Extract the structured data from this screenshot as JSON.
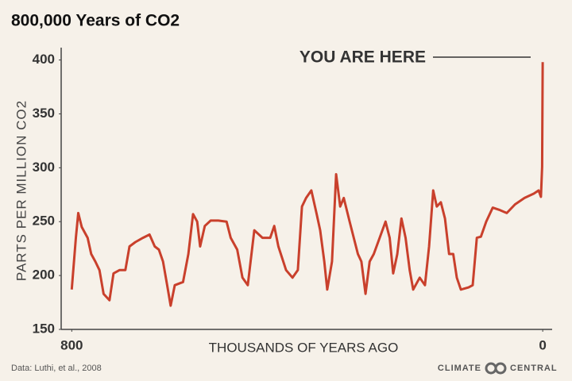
{
  "chart_data": {
    "type": "line",
    "title": "800,000 Years of CO2",
    "xlabel": "THOUSANDS OF YEARS AGO",
    "ylabel": "PARTS PER MILLION  CO2",
    "annotation": "YOU ARE HERE",
    "source": "Data: Luthi, et al., 2008",
    "logo": {
      "left": "CLIMATE",
      "right": "CENTRAL"
    },
    "color": "#c9402c",
    "xlim": [
      818,
      -16
    ],
    "xticks": [
      800,
      0
    ],
    "ylim": [
      150,
      410
    ],
    "yticks": [
      150,
      200,
      250,
      300,
      350,
      400
    ],
    "x": [
      800,
      793,
      789,
      783,
      773,
      767,
      760,
      753,
      746,
      736,
      729,
      719,
      709,
      702,
      692,
      679,
      668,
      659,
      652,
      645,
      638,
      632,
      625,
      611,
      602,
      594,
      587,
      582,
      574,
      564,
      551,
      537,
      530,
      519,
      510,
      501,
      490,
      476,
      463,
      456,
      449,
      436,
      425,
      416,
      409,
      402,
      393,
      384,
      378,
      371,
      366,
      358,
      351,
      344,
      338,
      328,
      321,
      314,
      308,
      301,
      294,
      287,
      277,
      267,
      260,
      254,
      247,
      240,
      233,
      226,
      220,
      209,
      200,
      193,
      186,
      180,
      173,
      166,
      159,
      152,
      146,
      139,
      126,
      119,
      112,
      105,
      96,
      85,
      74,
      61,
      47,
      31,
      15,
      7,
      3,
      1,
      0
    ],
    "values": [
      187,
      235,
      258,
      245,
      235,
      220,
      213,
      205,
      183,
      177,
      202,
      205,
      205,
      227,
      231,
      235,
      238,
      227,
      224,
      213,
      191,
      172,
      191,
      194,
      220,
      257,
      250,
      227,
      246,
      251,
      251,
      250,
      235,
      224,
      198,
      191,
      242,
      235,
      235,
      246,
      227,
      205,
      198,
      205,
      264,
      272,
      279,
      257,
      242,
      213,
      187,
      213,
      294,
      264,
      272,
      250,
      235,
      220,
      213,
      183,
      213,
      220,
      235,
      250,
      235,
      202,
      220,
      253,
      235,
      205,
      187,
      198,
      191,
      227,
      279,
      264,
      268,
      253,
      220,
      220,
      198,
      187,
      189,
      191,
      235,
      236,
      250,
      263,
      261,
      258,
      266,
      272,
      276,
      279,
      273,
      301,
      398
    ]
  }
}
